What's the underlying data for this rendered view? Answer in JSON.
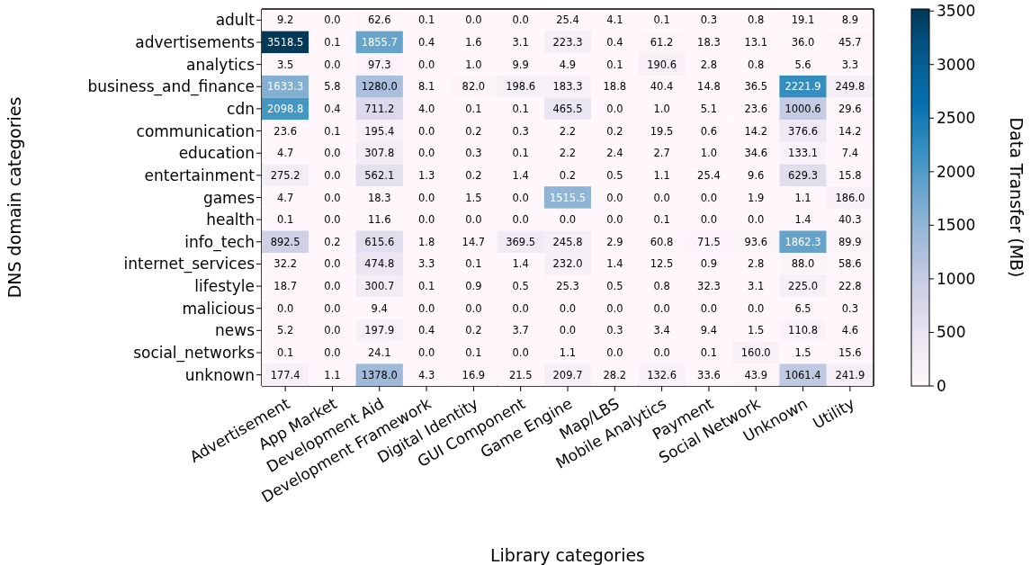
{
  "chart_data": {
    "type": "heatmap",
    "xlabel": "Library categories",
    "ylabel": "DNS domain categories",
    "clabel": "Data Transfer (MB)",
    "categories": [
      "Advertisement",
      "App Market",
      "Development Aid",
      "Development Framework",
      "Digital Identity",
      "GUI Component",
      "Game Engine",
      "Map/LBS",
      "Mobile Analytics",
      "Payment",
      "Social Network",
      "Unknown",
      "Utility"
    ],
    "y_categories": [
      "adult",
      "advertisements",
      "analytics",
      "business_and_finance",
      "cdn",
      "communication",
      "education",
      "entertainment",
      "games",
      "health",
      "info_tech",
      "internet_services",
      "lifestyle",
      "malicious",
      "news",
      "social_networks",
      "unknown"
    ],
    "cells": [
      [
        9.2,
        0.0,
        62.6,
        0.1,
        0.0,
        0.0,
        25.4,
        4.1,
        0.1,
        0.3,
        0.8,
        19.1,
        8.9
      ],
      [
        3518.5,
        0.1,
        1855.7,
        0.4,
        1.6,
        3.1,
        223.3,
        0.4,
        61.2,
        18.3,
        13.1,
        36.0,
        45.7
      ],
      [
        3.5,
        0.0,
        97.3,
        0.0,
        1.0,
        9.9,
        4.9,
        0.1,
        190.6,
        2.8,
        0.8,
        5.6,
        3.3
      ],
      [
        1633.3,
        5.8,
        1280.0,
        8.1,
        82.0,
        198.6,
        183.3,
        18.8,
        40.4,
        14.8,
        36.5,
        2221.9,
        249.8
      ],
      [
        2098.8,
        0.4,
        711.2,
        4.0,
        0.1,
        0.1,
        465.5,
        0.0,
        1.0,
        5.1,
        23.6,
        1000.6,
        29.6
      ],
      [
        23.6,
        0.1,
        195.4,
        0.0,
        0.2,
        0.3,
        2.2,
        0.2,
        19.5,
        0.6,
        14.2,
        376.6,
        14.2
      ],
      [
        4.7,
        0.0,
        307.8,
        0.0,
        0.3,
        0.1,
        2.2,
        2.4,
        2.7,
        1.0,
        34.6,
        133.1,
        7.4
      ],
      [
        275.2,
        0.0,
        562.1,
        1.3,
        0.2,
        1.4,
        0.2,
        0.5,
        1.1,
        25.4,
        9.6,
        629.3,
        15.8
      ],
      [
        4.7,
        0.0,
        18.3,
        0.0,
        1.5,
        0.0,
        1515.5,
        0.0,
        0.0,
        0.0,
        1.9,
        1.1,
        186.0
      ],
      [
        0.1,
        0.0,
        11.6,
        0.0,
        0.0,
        0.0,
        0.0,
        0.0,
        0.1,
        0.0,
        0.0,
        1.4,
        40.3
      ],
      [
        892.5,
        0.2,
        615.6,
        1.8,
        14.7,
        369.5,
        245.8,
        2.9,
        60.8,
        71.5,
        93.6,
        1862.3,
        89.9
      ],
      [
        32.2,
        0.0,
        474.8,
        3.3,
        0.1,
        1.4,
        232.0,
        1.4,
        12.5,
        0.9,
        2.8,
        88.0,
        58.6
      ],
      [
        18.7,
        0.0,
        300.7,
        0.1,
        0.9,
        0.5,
        25.3,
        0.5,
        0.8,
        32.3,
        3.1,
        225.0,
        22.8
      ],
      [
        0.0,
        0.0,
        9.4,
        0.0,
        0.0,
        0.0,
        0.0,
        0.0,
        0.0,
        0.0,
        0.0,
        6.5,
        0.3
      ],
      [
        5.2,
        0.0,
        197.9,
        0.4,
        0.2,
        3.7,
        0.0,
        0.3,
        3.4,
        9.4,
        1.5,
        110.8,
        4.6
      ],
      [
        0.1,
        0.0,
        24.1,
        0.0,
        0.1,
        0.0,
        1.1,
        0.0,
        0.0,
        0.1,
        160.0,
        1.5,
        15.6
      ],
      [
        177.4,
        1.1,
        1378.0,
        4.3,
        16.9,
        21.5,
        209.7,
        28.2,
        132.6,
        33.6,
        43.9,
        1061.4,
        241.9
      ]
    ],
    "cell_labels": [
      [
        "9.2",
        "0.0",
        "62.6",
        "0.1",
        "0.0",
        "0.0",
        "25.4",
        "4.1",
        "0.1",
        "0.3",
        "0.8",
        "19.1",
        "8.9"
      ],
      [
        "3518.5",
        "0.1",
        "1855.7",
        "0.4",
        "1.6",
        "3.1",
        "223.3",
        "0.4",
        "61.2",
        "18.3",
        "13.1",
        "36.0",
        "45.7"
      ],
      [
        "3.5",
        "0.0",
        "97.3",
        "0.0",
        "1.0",
        "9.9",
        "4.9",
        "0.1",
        "190.6",
        "2.8",
        "0.8",
        "5.6",
        "3.3"
      ],
      [
        "1633.3",
        "5.8",
        "1280.0",
        "8.1",
        "82.0",
        "198.6",
        "183.3",
        "18.8",
        "40.4",
        "14.8",
        "36.5",
        "2221.9",
        "249.8"
      ],
      [
        "2098.8",
        "0.4",
        "711.2",
        "4.0",
        "0.1",
        "0.1",
        "465.5",
        "0.0",
        "1.0",
        "5.1",
        "23.6",
        "1000.6",
        "29.6"
      ],
      [
        "23.6",
        "0.1",
        "195.4",
        "0.0",
        "0.2",
        "0.3",
        "2.2",
        "0.2",
        "19.5",
        "0.6",
        "14.2",
        "376.6",
        "14.2"
      ],
      [
        "4.7",
        "0.0",
        "307.8",
        "0.0",
        "0.3",
        "0.1",
        "2.2",
        "2.4",
        "2.7",
        "1.0",
        "34.6",
        "133.1",
        "7.4"
      ],
      [
        "275.2",
        "0.0",
        "562.1",
        "1.3",
        "0.2",
        "1.4",
        "0.2",
        "0.5",
        "1.1",
        "25.4",
        "9.6",
        "629.3",
        "15.8"
      ],
      [
        "4.7",
        "0.0",
        "18.3",
        "0.0",
        "1.5",
        "0.0",
        "1515.5",
        "0.0",
        "0.0",
        "0.0",
        "1.9",
        "1.1",
        "186.0"
      ],
      [
        "0.1",
        "0.0",
        "11.6",
        "0.0",
        "0.0",
        "0.0",
        "0.0",
        "0.0",
        "0.1",
        "0.0",
        "0.0",
        "1.4",
        "40.3"
      ],
      [
        "892.5",
        "0.2",
        "615.6",
        "1.8",
        "14.7",
        "369.5",
        "245.8",
        "2.9",
        "60.8",
        "71.5",
        "93.6",
        "1862.3",
        "89.9"
      ],
      [
        "32.2",
        "0.0",
        "474.8",
        "3.3",
        "0.1",
        "1.4",
        "232.0",
        "1.4",
        "12.5",
        "0.9",
        "2.8",
        "88.0",
        "58.6"
      ],
      [
        "18.7",
        "0.0",
        "300.7",
        "0.1",
        "0.9",
        "0.5",
        "25.3",
        "0.5",
        "0.8",
        "32.3",
        "3.1",
        "225.0",
        "22.8"
      ],
      [
        "0.0",
        "0.0",
        "9.4",
        "0.0",
        "0.0",
        "0.0",
        "0.0",
        "0.0",
        "0.0",
        "0.0",
        "0.0",
        "6.5",
        "0.3"
      ],
      [
        "5.2",
        "0.0",
        "197.9",
        "0.4",
        "0.2",
        "3.7",
        "0.0",
        "0.3",
        "3.4",
        "9.4",
        "1.5",
        "110.8",
        "4.6"
      ],
      [
        "0.1",
        "0.0",
        "24.1",
        "0.0",
        "0.1",
        "0.0",
        "1.1",
        "0.0",
        "0.0",
        "0.1",
        "160.0",
        "1.5",
        "15.6"
      ],
      [
        "177.4",
        "1.1",
        "1378.0",
        "4.3",
        "16.9",
        "21.5",
        "209.7",
        "28.2",
        "132.6",
        "33.6",
        "43.9",
        "1061.4",
        "241.9"
      ]
    ],
    "clim": [
      0,
      3518.5
    ],
    "cticks": [
      0,
      500,
      1000,
      1500,
      2000,
      2500,
      3000,
      3500
    ]
  }
}
